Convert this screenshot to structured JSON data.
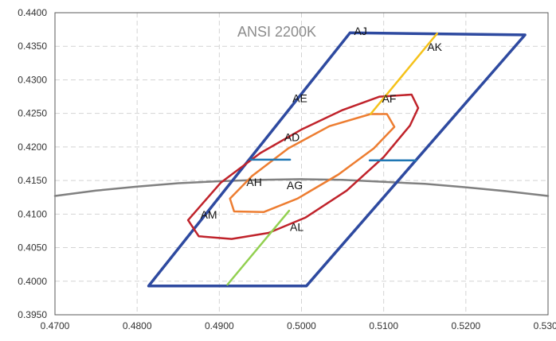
{
  "chart_data": {
    "type": "line",
    "title": "ANSI 2200K",
    "xlim": [
      0.47,
      0.53
    ],
    "ylim": [
      0.395,
      0.44
    ],
    "x_ticks": [
      "0.4700",
      "0.4800",
      "0.4900",
      "0.5000",
      "0.5100",
      "0.5200",
      "0.5300"
    ],
    "y_ticks": [
      "0.3950",
      "0.4000",
      "0.4050",
      "0.4100",
      "0.4150",
      "0.4200",
      "0.4250",
      "0.4300",
      "0.4350",
      "0.4400"
    ],
    "grid": true,
    "legend": "none",
    "series": [
      {
        "color": "#808080",
        "points": [
          [
            0.47,
            0.4127
          ],
          [
            0.475,
            0.4135
          ],
          [
            0.48,
            0.4141
          ],
          [
            0.485,
            0.4146
          ],
          [
            0.49,
            0.4149
          ],
          [
            0.495,
            0.4151
          ],
          [
            0.5,
            0.4152
          ],
          [
            0.505,
            0.4151
          ],
          [
            0.51,
            0.4148
          ],
          [
            0.515,
            0.4145
          ],
          [
            0.52,
            0.414
          ],
          [
            0.525,
            0.4134
          ],
          [
            0.53,
            0.4127
          ]
        ]
      },
      {
        "color": "#2E4AA0",
        "closed": true,
        "points": [
          [
            0.5059,
            0.437
          ],
          [
            0.5272,
            0.4367
          ],
          [
            0.5006,
            0.3993
          ],
          [
            0.4814,
            0.3993
          ]
        ]
      },
      {
        "color": "#C0232B",
        "closed": true,
        "points": [
          [
            0.5134,
            0.4278
          ],
          [
            0.5095,
            0.4275
          ],
          [
            0.505,
            0.4255
          ],
          [
            0.5,
            0.4226
          ],
          [
            0.495,
            0.4191
          ],
          [
            0.4902,
            0.4147
          ],
          [
            0.4862,
            0.4091
          ],
          [
            0.4875,
            0.4067
          ],
          [
            0.4915,
            0.4063
          ],
          [
            0.496,
            0.4072
          ],
          [
            0.5005,
            0.4095
          ],
          [
            0.5055,
            0.4135
          ],
          [
            0.51,
            0.4185
          ],
          [
            0.5132,
            0.4232
          ],
          [
            0.5142,
            0.4258
          ]
        ]
      },
      {
        "color": "#ED7D31",
        "closed": true,
        "points": [
          [
            0.5084,
            0.4249
          ],
          [
            0.5034,
            0.4231
          ],
          [
            0.4984,
            0.4198
          ],
          [
            0.494,
            0.4157
          ],
          [
            0.4913,
            0.4123
          ],
          [
            0.4918,
            0.4104
          ],
          [
            0.4954,
            0.4103
          ],
          [
            0.4995,
            0.4123
          ],
          [
            0.5045,
            0.4159
          ],
          [
            0.5088,
            0.4198
          ],
          [
            0.5113,
            0.423
          ],
          [
            0.5104,
            0.4249
          ]
        ]
      },
      {
        "color": "#1F77B4",
        "points": [
          [
            0.4938,
            0.4181
          ],
          [
            0.4986,
            0.4181
          ]
        ]
      },
      {
        "color": "#1F77B4",
        "points": [
          [
            0.5083,
            0.418
          ],
          [
            0.5139,
            0.418
          ]
        ]
      },
      {
        "color": "#F5C21A",
        "points": [
          [
            0.5084,
            0.4249
          ],
          [
            0.5165,
            0.4369
          ]
        ]
      },
      {
        "color": "#92D050",
        "points": [
          [
            0.4985,
            0.4105
          ],
          [
            0.491,
            0.3995
          ]
        ]
      }
    ],
    "annotations": [
      {
        "text": "AJ",
        "x": 0.5064,
        "y": 0.4367
      },
      {
        "text": "AK",
        "x": 0.5153,
        "y": 0.4343
      },
      {
        "text": "AE",
        "x": 0.4989,
        "y": 0.4267
      },
      {
        "text": "AF",
        "x": 0.5098,
        "y": 0.4266
      },
      {
        "text": "AD",
        "x": 0.4979,
        "y": 0.4209
      },
      {
        "text": "AH",
        "x": 0.4933,
        "y": 0.4142
      },
      {
        "text": "AG",
        "x": 0.4982,
        "y": 0.4137
      },
      {
        "text": "AM",
        "x": 0.4877,
        "y": 0.4093
      },
      {
        "text": "AL",
        "x": 0.4986,
        "y": 0.4075
      }
    ]
  }
}
